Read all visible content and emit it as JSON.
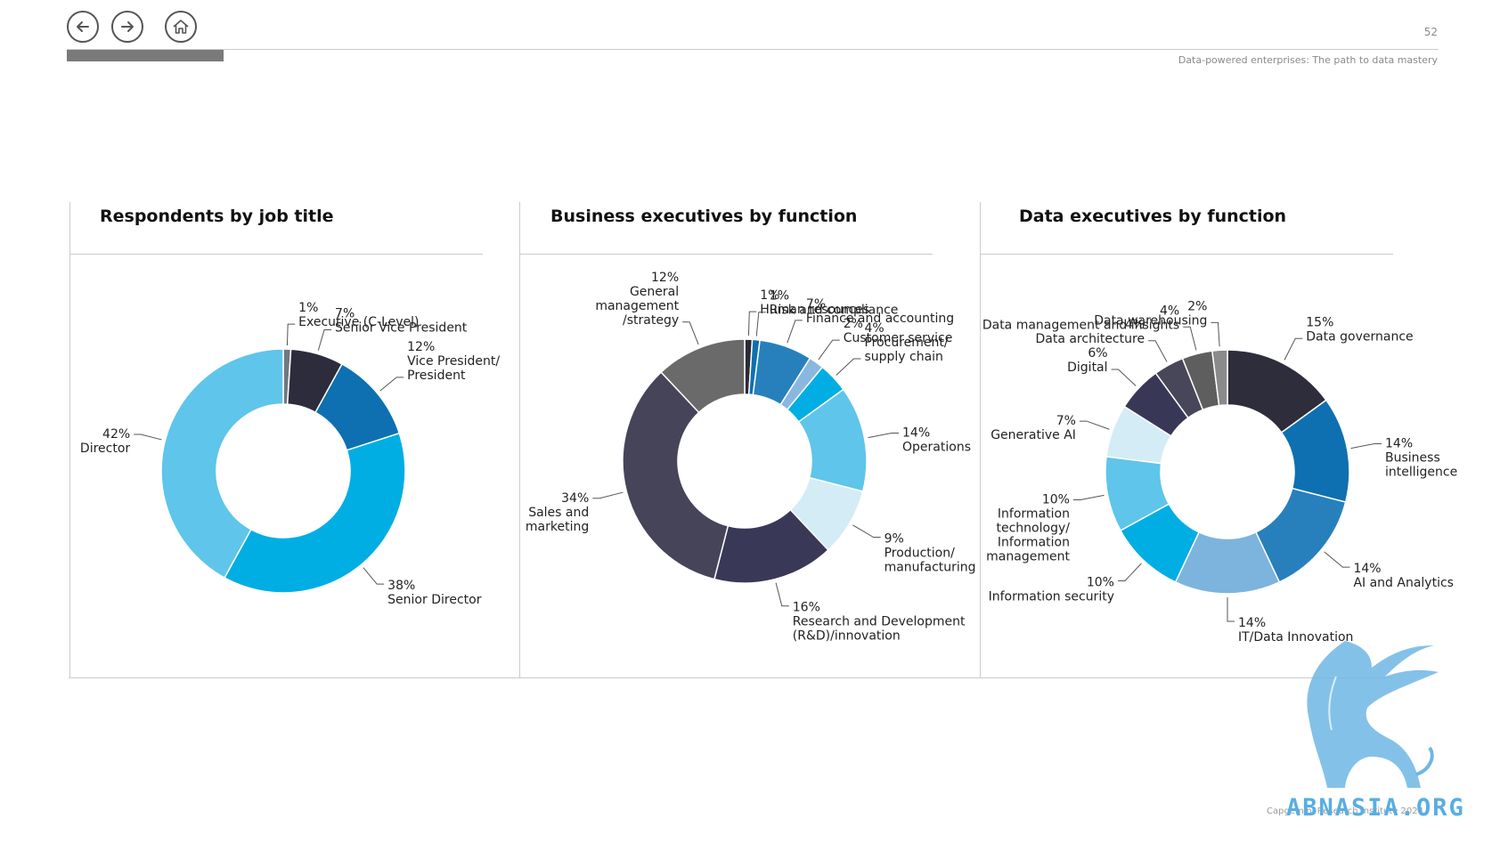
{
  "header": {
    "page_number": "52",
    "subtitle": "Data-powered enterprises: The path to data mastery"
  },
  "nav": {
    "back_icon": "arrow-left-icon",
    "forward_icon": "arrow-right-icon",
    "home_icon": "home-icon"
  },
  "footer": {
    "copyright": "Capgemini Research Institute 2024"
  },
  "watermark": {
    "text": "ABNASIA.ORG",
    "color": "#58aee2"
  },
  "chart_data": [
    {
      "type": "pie",
      "style": "donut",
      "title": "Respondents by job title",
      "slices": [
        {
          "label": [
            "Executive (C-Level)"
          ],
          "value": 1,
          "pct": "1%",
          "color": "#707880"
        },
        {
          "label": [
            "Senior Vice President"
          ],
          "value": 7,
          "pct": "7%",
          "color": "#2c2c3c"
        },
        {
          "label": [
            "Vice President/",
            "President"
          ],
          "value": 12,
          "pct": "12%",
          "color": "#0e70b0"
        },
        {
          "label": [
            "Senior Director"
          ],
          "value": 38,
          "pct": "38%",
          "color": "#00aee3"
        },
        {
          "label": [
            "Director"
          ],
          "value": 42,
          "pct": "42%",
          "color": "#5fc5ea"
        }
      ]
    },
    {
      "type": "pie",
      "style": "donut",
      "title": "Business executives by function",
      "slices": [
        {
          "label": [
            "Human resources"
          ],
          "value": 1,
          "pct": "1%",
          "color": "#2a2a38"
        },
        {
          "label": [
            "Risk and compliance"
          ],
          "value": 1,
          "pct": "1%",
          "color": "#0e70b0"
        },
        {
          "label": [
            "Finance and accounting"
          ],
          "value": 7,
          "pct": "7%",
          "color": "#2780bc"
        },
        {
          "label": [
            "Customer service"
          ],
          "value": 2,
          "pct": "2%",
          "color": "#8ab7df"
        },
        {
          "label": [
            "Procurement/",
            "supply chain"
          ],
          "value": 4,
          "pct": "4%",
          "color": "#00aee3"
        },
        {
          "label": [
            "Operations"
          ],
          "value": 14,
          "pct": "14%",
          "color": "#5fc5ea"
        },
        {
          "label": [
            "Production/",
            "manufacturing"
          ],
          "value": 9,
          "pct": "9%",
          "color": "#d4ecf6"
        },
        {
          "label": [
            "Research and Development",
            "(R&D)/innovation"
          ],
          "value": 16,
          "pct": "16%",
          "color": "#393857"
        },
        {
          "label": [
            "Sales and",
            "marketing"
          ],
          "value": 34,
          "pct": "34%",
          "color": "#464459"
        },
        {
          "label": [
            "General",
            "management",
            "/strategy"
          ],
          "value": 12,
          "pct": "12%",
          "color": "#6a6a6a"
        }
      ]
    },
    {
      "type": "pie",
      "style": "donut",
      "title": "Data executives by function",
      "slices": [
        {
          "label": [
            "Data governance"
          ],
          "value": 15,
          "pct": "15%",
          "color": "#2d2d3b"
        },
        {
          "label": [
            "Business",
            "intelligence"
          ],
          "value": 14,
          "pct": "14%",
          "color": "#0e70b0"
        },
        {
          "label": [
            "AI and Analytics"
          ],
          "value": 14,
          "pct": "14%",
          "color": "#2780bc"
        },
        {
          "label": [
            "IT/Data Innovation"
          ],
          "value": 14,
          "pct": "14%",
          "color": "#7cb4de"
        },
        {
          "label": [
            "Information security"
          ],
          "value": 10,
          "pct": "10%",
          "color": "#00aee3"
        },
        {
          "label": [
            "Information",
            "technology/",
            "Information",
            "management"
          ],
          "value": 10,
          "pct": "10%",
          "color": "#5fc5ea"
        },
        {
          "label": [
            "Generative AI"
          ],
          "value": 7,
          "pct": "7%",
          "color": "#d4ecf6"
        },
        {
          "label": [
            "Digital"
          ],
          "value": 6,
          "pct": "6%",
          "color": "#383856"
        },
        {
          "label": [
            "Data architecture"
          ],
          "value": 4,
          "pct": "4%",
          "color": "#474759"
        },
        {
          "label": [
            "Data management and insights"
          ],
          "value": 4,
          "pct": "4%",
          "color": "#5e5e5e"
        },
        {
          "label": [
            "Data warehousing"
          ],
          "value": 2,
          "pct": "2%",
          "color": "#8a8a8a"
        }
      ]
    }
  ]
}
